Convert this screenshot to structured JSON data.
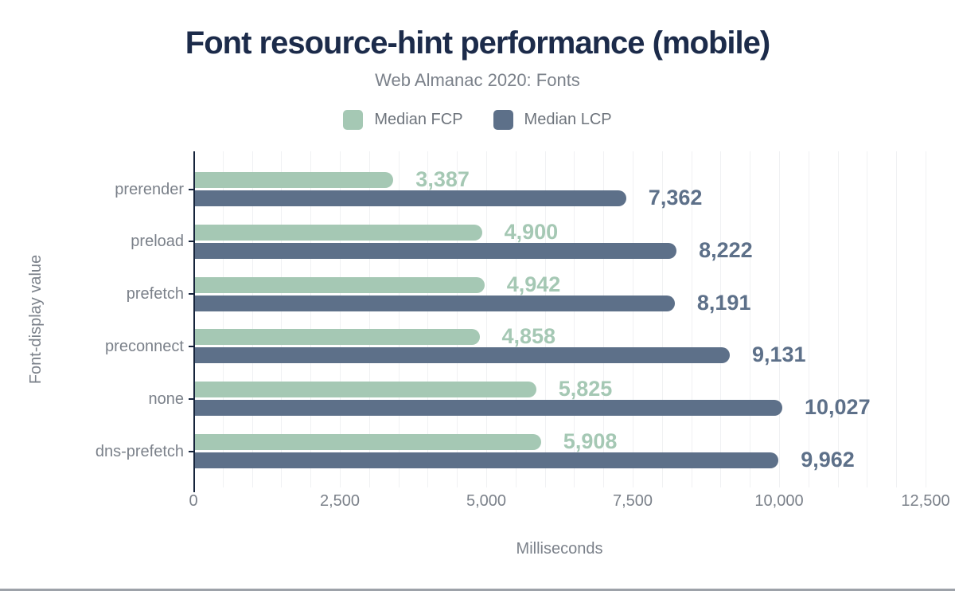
{
  "chart_data": {
    "type": "bar",
    "orientation": "horizontal",
    "title": "Font resource-hint performance (mobile)",
    "subtitle": "Web Almanac 2020: Fonts",
    "xlabel": "Milliseconds",
    "ylabel": "Font-display value",
    "categories": [
      "prerender",
      "preload",
      "prefetch",
      "preconnect",
      "none",
      "dns-prefetch"
    ],
    "series": [
      {
        "name": "Median FCP",
        "color": "#a5c8b4",
        "values": [
          3387,
          4900,
          4942,
          4858,
          5825,
          5908
        ],
        "labels": [
          "3,387",
          "4,900",
          "4,942",
          "4,858",
          "5,825",
          "5,908"
        ]
      },
      {
        "name": "Median LCP",
        "color": "#5d7089",
        "values": [
          7362,
          8222,
          8191,
          9131,
          10027,
          9962
        ],
        "labels": [
          "7,362",
          "8,222",
          "8,191",
          "9,131",
          "10,027",
          "9,962"
        ]
      }
    ],
    "xlim": [
      0,
      12500
    ],
    "x_ticks": [
      0,
      2500,
      5000,
      7500,
      10000,
      12500
    ],
    "x_tick_labels": [
      "0",
      "2,500",
      "5,000",
      "7,500",
      "10,000",
      "12,500"
    ],
    "gridlines": "vertical, every 500 ms, faint",
    "legend_position": "top-center"
  },
  "colors": {
    "background": "#ffffff",
    "title_text": "#1c2b4a",
    "muted_text": "#7b818a",
    "legend_text": "#6e747c",
    "axis_line": "#16243c",
    "gridline": "#f0f1f3",
    "fcp_green": "#a5c8b4",
    "lcp_slate": "#5d7089",
    "bottom_border": "#9da2a9"
  }
}
